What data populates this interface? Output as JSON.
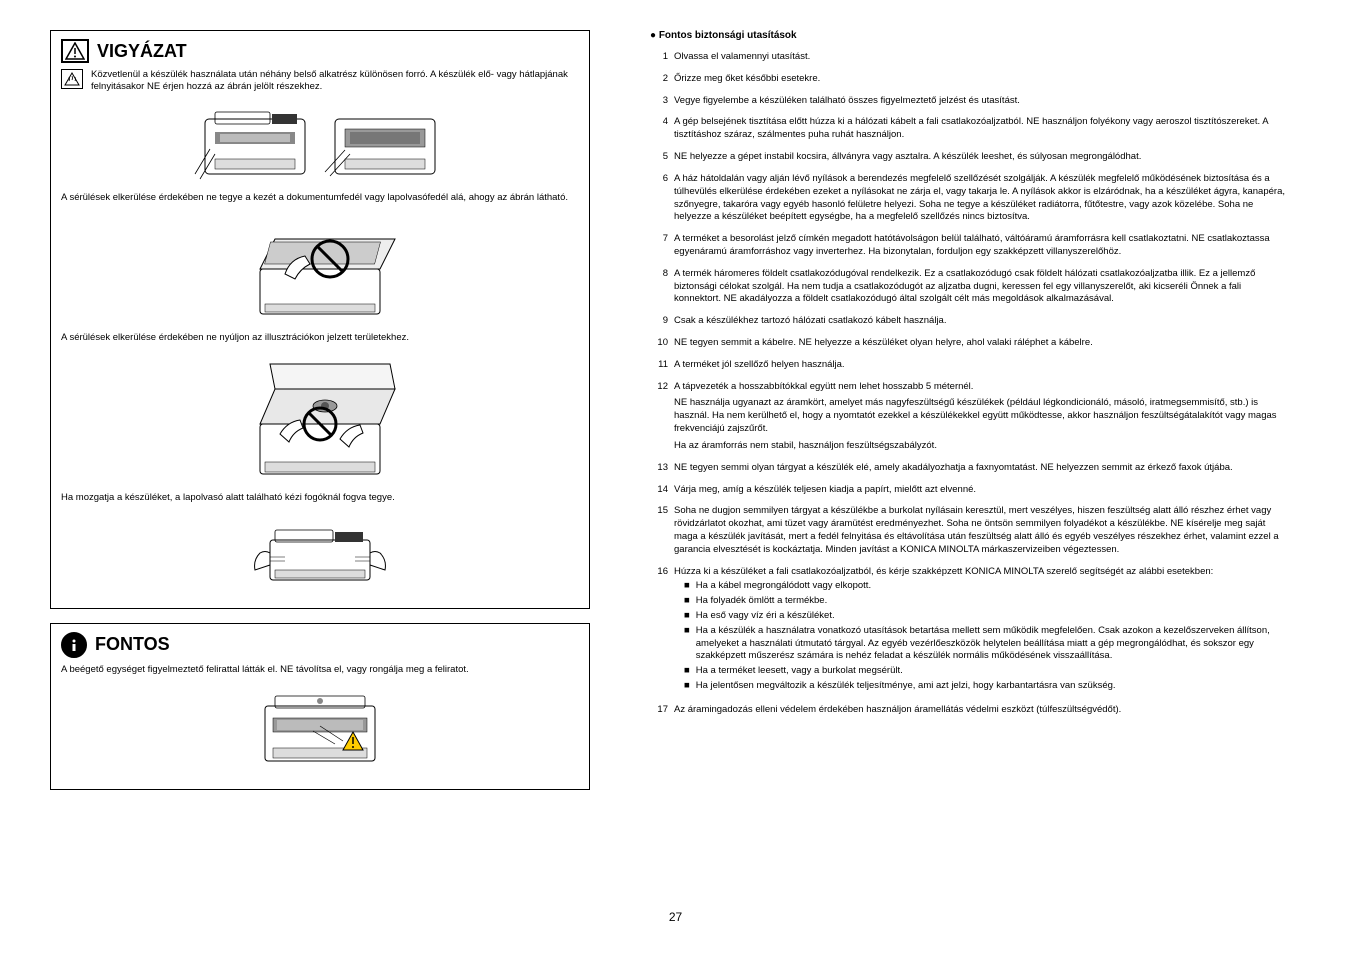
{
  "page_number": "27",
  "left": {
    "vigyazat": {
      "title": "VIGYÁZAT",
      "sections": [
        {
          "text": "Közvetlenül a készülék használata után néhány belső alkatrész különösen forró. A készülék elő- vagy hátlapjának felnyitásakor NE érjen hozzá az ábrán jelölt részekhez.",
          "subicon": true
        },
        {
          "text": "A sérülések elkerülése érdekében ne tegye a kezét a dokumentumfedél vagy lapolvasófedél alá, ahogy az ábrán látható."
        },
        {
          "text": "A sérülések elkerülése érdekében ne nyúljon az illusztrációkon jelzett területekhez."
        },
        {
          "text": "Ha mozgatja a készüléket, a lapolvasó alatt található kézi fogóknál fogva tegye."
        }
      ]
    },
    "fontos": {
      "title": "FONTOS",
      "text": "A beégető egységet figyelmeztető felirattal látták el. NE távolítsa el, vagy rongálja meg a feliratot."
    }
  },
  "right": {
    "heading": "● Fontos biztonsági utasítások",
    "items": [
      {
        "n": "1",
        "text": "Olvassa el valamennyi utasítást."
      },
      {
        "n": "2",
        "text": "Őrizze meg őket későbbi esetekre."
      },
      {
        "n": "3",
        "text": "Vegye figyelembe a készüléken található összes figyelmeztető jelzést és utasítást."
      },
      {
        "n": "4",
        "text": "A gép belsejének tisztítása előtt húzza ki a hálózati kábelt a fali csatlakozóaljzatból. NE használjon folyékony vagy aeroszol tisztítószereket. A tisztításhoz száraz, szálmentes puha ruhát használjon."
      },
      {
        "n": "5",
        "text": "NE helyezze a gépet instabil kocsira, állványra vagy asztalra. A készülék leeshet, és súlyosan megrongálódhat."
      },
      {
        "n": "6",
        "text": "A ház hátoldalán vagy alján lévő nyílások a berendezés megfelelő szellőzését szolgálják. A készülék megfelelő működésének biztosítása és a túlhevülés elkerülése érdekében ezeket a nyílásokat ne zárja el, vagy takarja le. A nyílások akkor is elzáródnak, ha a készüléket ágyra, kanapéra, szőnyegre, takaróra vagy egyéb hasonló felületre helyezi. Soha ne tegye a készüléket radiátorra, fűtőtestre, vagy azok közelébe. Soha ne helyezze a készüléket beépített egységbe, ha a megfelelő szellőzés nincs biztosítva."
      },
      {
        "n": "7",
        "text": "A terméket a besorolást jelző címkén megadott hatótávolságon belül található, váltóáramú áramforrásra kell csatlakoztatni. NE csatlakoztassa egyenáramú áramforráshoz vagy inverterhez. Ha bizonytalan, forduljon egy szakképzett villanyszerelőhöz."
      },
      {
        "n": "8",
        "text": "A termék háromeres földelt csatlakozódugóval rendelkezik. Ez a csatlakozódugó csak földelt hálózati csatlakozóaljzatba illik. Ez a jellemző biztonsági célokat szolgál. Ha nem tudja a csatlakozódugót az aljzatba dugni, keressen fel egy villanyszerelőt, aki kicseréli Önnek a fali konnektort. NE akadályozza a földelt csatlakozódugó által szolgált célt más megoldások alkalmazásával."
      },
      {
        "n": "9",
        "text": "Csak a készülékhez tartozó hálózati csatlakozó kábelt használja."
      },
      {
        "n": "10",
        "text": "NE tegyen semmit a kábelre. NE helyezze a készüléket olyan helyre, ahol valaki ráléphet a kábelre."
      },
      {
        "n": "11",
        "text": "A terméket jól szellőző helyen használja."
      },
      {
        "n": "12",
        "text": "A tápvezeték a hosszabbítókkal együtt nem lehet hosszabb 5 méternél.",
        "extra": [
          "NE használja ugyanazt az áramkört, amelyet más nagyfeszültségű készülékek (például légkondicionáló, másoló, iratmegsemmisítő, stb.) is használ. Ha nem kerülhető el, hogy a nyomtatót ezekkel a készülékekkel együtt működtesse, akkor használjon feszültségátalakítót vagy magas frekvenciájú zajszűrőt.",
          "Ha az áramforrás nem stabil, használjon feszültségszabályzót."
        ]
      },
      {
        "n": "13",
        "text": "NE tegyen semmi olyan tárgyat a készülék elé, amely akadályozhatja a faxnyomtatást. NE helyezzen semmit az érkező faxok útjába."
      },
      {
        "n": "14",
        "text": "Várja meg, amíg a készülék teljesen kiadja a papírt, mielőtt azt elvenné."
      },
      {
        "n": "15",
        "text": "Soha ne dugjon semmilyen tárgyat a készülékbe a burkolat nyílásain keresztül, mert veszélyes, hiszen feszültség alatt álló részhez érhet vagy rövidzárlatot okozhat, ami tüzet vagy áramütést eredményezhet. Soha ne öntsön semmilyen folyadékot a készülékbe. NE kísérelje meg saját maga a készülék javítását, mert a fedél felnyitása és eltávolítása után feszültség alatt álló és egyéb veszélyes részekhez érhet, valamint ezzel a garancia elvesztését is kockáztatja. Minden javítást a KONICA MINOLTA márkaszervizeiben végeztessen."
      },
      {
        "n": "16",
        "text": "Húzza ki a készüléket a fali csatlakozóaljzatból, és kérje szakképzett KONICA MINOLTA szerelő segítségét az alábbi esetekben:",
        "bullets": [
          "Ha a kábel megrongálódott vagy elkopott.",
          "Ha folyadék ömlött a termékbe.",
          "Ha eső vagy víz éri a készüléket.",
          "Ha a készülék a használatra vonatkozó utasítások betartása mellett sem működik megfelelően. Csak azokon a kezelőszerveken állítson, amelyeket a használati útmutató tárgyal. Az egyéb vezérlőeszközök helytelen beállítása miatt a gép megrongálódhat, és sokszor egy szakképzett műszerész számára is nehéz feladat a készülék normális működésének visszaállítása.",
          "Ha a terméket leesett, vagy a burkolat megsérült.",
          "Ha jelentősen megváltozik a készülék teljesítménye, ami azt jelzi, hogy karbantartásra van szükség."
        ]
      },
      {
        "n": "17",
        "text": "Az áramingadozás elleni védelem érdekében használjon áramellátás védelmi eszközt (túlfeszültségvédőt)."
      }
    ]
  }
}
